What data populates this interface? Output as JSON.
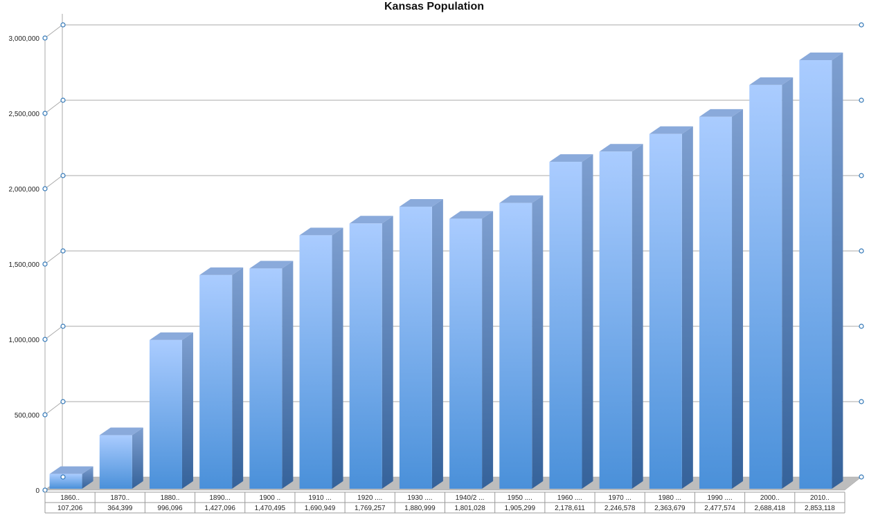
{
  "chart_data": {
    "type": "bar",
    "title": "Kansas Population",
    "categories": [
      "1860..",
      "1870..",
      "1880..",
      "1890...",
      "1900 ..",
      "1910 ...",
      "1920 ....",
      "1930 ....",
      "1940/2 ...",
      "1950 ....",
      "1960 ....",
      "1970 ...",
      "1980 ...",
      "1990 ....",
      "2000..",
      "2010.."
    ],
    "values": [
      107206,
      364399,
      996096,
      1427096,
      1470495,
      1690949,
      1769257,
      1880999,
      1801028,
      1905299,
      2178611,
      2246578,
      2363679,
      2477574,
      2688418,
      2853118
    ],
    "value_labels": [
      "107,206",
      "364,399",
      "996,096",
      "1,427,096",
      "1,470,495",
      "1,690,949",
      "1,769,257",
      "1,880,999",
      "1,801,028",
      "1,905,299",
      "2,178,611",
      "2,246,578",
      "2,363,679",
      "2,477,574",
      "2,688,418",
      "2,853,118"
    ],
    "yticks": [
      0,
      500000,
      1000000,
      1500000,
      2000000,
      2500000,
      3000000
    ],
    "ytick_labels": [
      "0",
      "500,000",
      "1,000,000",
      "1,500,000",
      "2,000,000",
      "2,500,000",
      "3,000,000"
    ],
    "ylim": [
      0,
      3000000
    ],
    "grid": true,
    "style": "3d-column",
    "data_table": true,
    "colors": {
      "bar_front_top": "#aaccff",
      "bar_front_bottom": "#4a90d9",
      "bar_side": "#3f6fa6",
      "bar_top": "#8aaadb",
      "floor": "#bdbdbd",
      "grid": "#a9a9a9",
      "handle": "#2e75b6"
    }
  }
}
